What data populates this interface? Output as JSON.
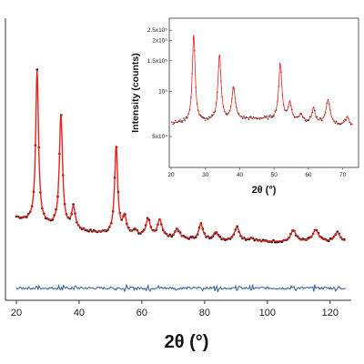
{
  "chart_data": [
    {
      "type": "line",
      "xlabel": "2θ (°)",
      "ylabel": "",
      "xlim": [
        15,
        130
      ],
      "ylim": [
        0,
        1.0
      ],
      "x_ticks": [
        "20",
        "40",
        "60",
        "80",
        "100",
        "120"
      ],
      "grid": false,
      "legend": "none",
      "colors": {
        "observed": "#1a1a1a",
        "calculated": "#e8231d",
        "difference": "#2f5fa8"
      },
      "series": [
        {
          "role": "observed",
          "x": [
            20,
            24,
            25.5,
            26.6,
            27.8,
            30,
            32.5,
            34.2,
            35.8,
            37,
            38.2,
            39.5,
            42,
            46,
            50.5,
            51.8,
            53,
            54.5,
            56,
            58,
            60,
            62,
            64,
            65.7,
            67,
            69,
            71.3,
            73.5,
            76,
            78.8,
            81,
            83.5,
            86,
            88,
            90.3,
            92.5,
            95,
            98,
            102,
            106,
            108.3,
            110.5,
            113,
            115.4,
            118,
            120,
            122.3,
            124.5,
            125
          ],
          "y": [
            0.13,
            0.15,
            0.3,
            0.9,
            0.3,
            0.12,
            0.19,
            0.72,
            0.21,
            0.14,
            0.22,
            0.14,
            0.09,
            0.07,
            0.12,
            0.54,
            0.11,
            0.17,
            0.07,
            0.08,
            0.07,
            0.15,
            0.08,
            0.15,
            0.08,
            0.04,
            0.08,
            0.03,
            0.03,
            0.1,
            0.04,
            0.06,
            0.02,
            0.03,
            0.09,
            0.03,
            0.01,
            0.02,
            0.01,
            0.01,
            0.07,
            0.02,
            0.03,
            0.07,
            0.02,
            0.02,
            0.06,
            0.02,
            0.02
          ]
        },
        {
          "role": "calculated",
          "x": [
            20,
            24,
            25.5,
            26.6,
            27.8,
            30,
            32.5,
            34.2,
            35.8,
            37,
            38.2,
            39.5,
            42,
            46,
            50.5,
            51.8,
            53,
            54.5,
            56,
            58,
            60,
            62,
            64,
            65.7,
            67,
            69,
            71.3,
            73.5,
            76,
            78.8,
            81,
            83.5,
            86,
            88,
            90.3,
            92.5,
            95,
            98,
            102,
            106,
            108.3,
            110.5,
            113,
            115.4,
            118,
            120,
            122.3,
            124.5,
            125
          ],
          "y": [
            0.13,
            0.15,
            0.3,
            0.9,
            0.3,
            0.12,
            0.19,
            0.72,
            0.21,
            0.14,
            0.22,
            0.14,
            0.09,
            0.07,
            0.12,
            0.54,
            0.11,
            0.17,
            0.07,
            0.08,
            0.07,
            0.15,
            0.08,
            0.15,
            0.08,
            0.04,
            0.08,
            0.03,
            0.03,
            0.1,
            0.04,
            0.06,
            0.02,
            0.03,
            0.09,
            0.03,
            0.01,
            0.02,
            0.01,
            0.01,
            0.07,
            0.02,
            0.03,
            0.07,
            0.02,
            0.02,
            0.06,
            0.02,
            0.02
          ]
        },
        {
          "role": "difference",
          "x": [
            20,
            30,
            40,
            50,
            60,
            70,
            80,
            90,
            100,
            110,
            120,
            125
          ],
          "y": [
            -0.22,
            -0.215,
            -0.225,
            -0.22,
            -0.218,
            -0.222,
            -0.22,
            -0.219,
            -0.221,
            -0.22,
            -0.22,
            -0.221
          ]
        }
      ]
    },
    {
      "type": "line",
      "xlabel": "2θ (°)",
      "ylabel": "Intensity (counts)",
      "xlim": [
        20,
        73
      ],
      "x_ticks": [
        "20",
        "30",
        "40",
        "50",
        "60",
        "70"
      ],
      "y_ticks": [
        "2.5x10⁵",
        "2x10⁵",
        "1.5x10⁵",
        "10⁵",
        "5x10⁴"
      ],
      "grid": false,
      "legend": "none",
      "series": [
        {
          "role": "observed",
          "x": [
            20,
            22,
            24,
            25.5,
            26.6,
            27.8,
            30,
            32,
            34.1,
            35.6,
            37,
            38.2,
            39.5,
            42,
            45,
            48,
            50.5,
            51.8,
            53,
            54.6,
            56,
            57.8,
            59.5,
            61.5,
            63,
            64.5,
            65.7,
            67,
            68.5,
            70,
            71.3,
            72.5
          ],
          "y": [
            0.3,
            0.32,
            0.37,
            0.5,
            0.9,
            0.52,
            0.34,
            0.4,
            0.78,
            0.42,
            0.38,
            0.58,
            0.38,
            0.33,
            0.3,
            0.32,
            0.4,
            0.72,
            0.38,
            0.46,
            0.32,
            0.38,
            0.3,
            0.42,
            0.32,
            0.38,
            0.48,
            0.35,
            0.3,
            0.28,
            0.32,
            0.27
          ]
        }
      ]
    }
  ]
}
